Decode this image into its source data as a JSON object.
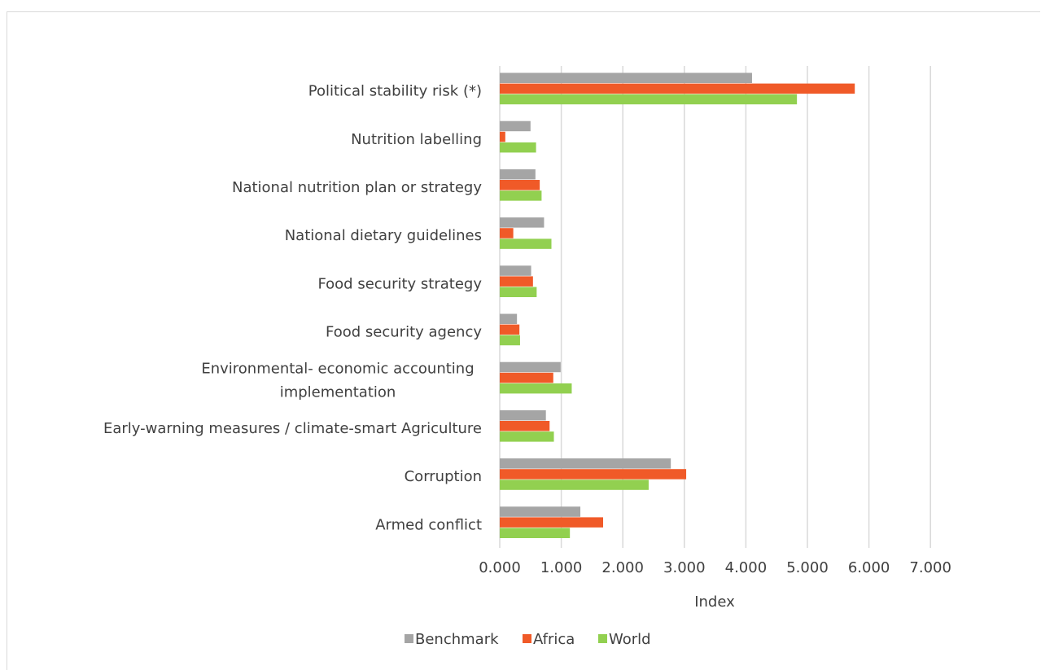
{
  "chart_data": {
    "type": "bar",
    "orientation": "horizontal",
    "title": "",
    "xlabel": "Index",
    "ylabel": "",
    "xlim": [
      0,
      7
    ],
    "x_ticks": [
      "0.000",
      "1.000",
      "2.000",
      "3.000",
      "4.000",
      "5.000",
      "6.000",
      "7.000"
    ],
    "grid": "vertical",
    "legend_position": "bottom",
    "categories": [
      [
        "Political stability risk (*)"
      ],
      [
        "Nutrition labelling"
      ],
      [
        "National nutrition plan or strategy"
      ],
      [
        "National dietary guidelines"
      ],
      [
        "Food security strategy"
      ],
      [
        "Food security agency"
      ],
      [
        "Environmental- economic accounting",
        "implementation"
      ],
      [
        "Early-warning measures / climate-smart Agriculture"
      ],
      [
        "Corruption"
      ],
      [
        "Armed conflict"
      ]
    ],
    "series": [
      {
        "name": "Benchmark",
        "color": "#a5a5a5",
        "values": [
          4.1,
          0.5,
          0.58,
          0.72,
          0.51,
          0.28,
          0.99,
          0.75,
          2.78,
          1.31
        ]
      },
      {
        "name": "Africa",
        "color": "#f05a28",
        "values": [
          5.77,
          0.09,
          0.65,
          0.22,
          0.54,
          0.32,
          0.87,
          0.81,
          3.03,
          1.68
        ]
      },
      {
        "name": "World",
        "color": "#92d050",
        "values": [
          4.83,
          0.59,
          0.68,
          0.84,
          0.6,
          0.33,
          1.17,
          0.88,
          2.42,
          1.14
        ]
      }
    ]
  }
}
